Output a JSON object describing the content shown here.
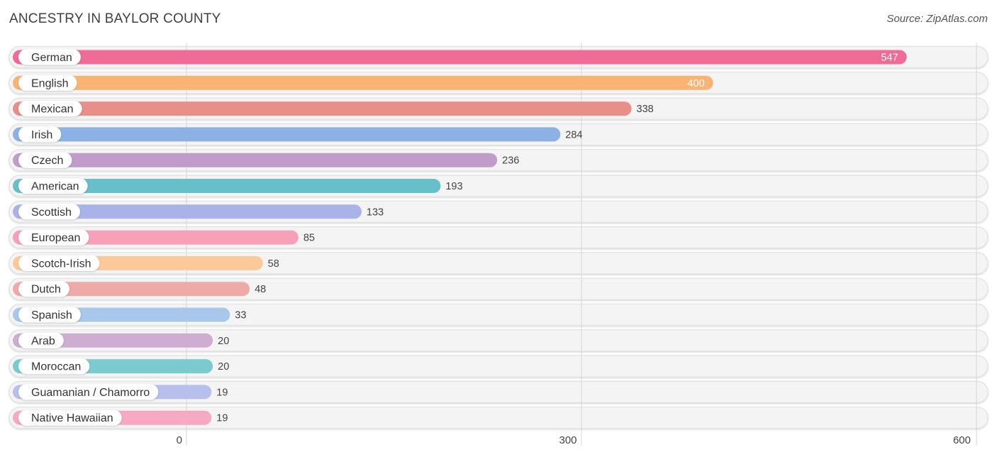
{
  "header": {
    "title": "ANCESTRY IN BAYLOR COUNTY",
    "source": "Source: ZipAtlas.com"
  },
  "chart_data": {
    "type": "bar",
    "orientation": "horizontal",
    "title": "ANCESTRY IN BAYLOR COUNTY",
    "xlabel": "",
    "ylabel": "",
    "xlim": [
      0,
      600
    ],
    "ticks": [
      0,
      300,
      600
    ],
    "tick_labels": [
      "0",
      "300",
      "600"
    ],
    "grid": true,
    "categories": [
      "German",
      "English",
      "Mexican",
      "Irish",
      "Czech",
      "American",
      "Scottish",
      "European",
      "Scotch-Irish",
      "Dutch",
      "Spanish",
      "Arab",
      "Moroccan",
      "Guamanian / Chamorro",
      "Native Hawaiian"
    ],
    "values": [
      547,
      400,
      338,
      284,
      236,
      193,
      133,
      85,
      58,
      48,
      33,
      20,
      20,
      19,
      19
    ],
    "value_labels": [
      "547",
      "400",
      "338",
      "284",
      "236",
      "193",
      "133",
      "85",
      "58",
      "48",
      "33",
      "20",
      "20",
      "19",
      "19"
    ],
    "colors": [
      "#f06b96",
      "#f9b474",
      "#e88f8a",
      "#8cb1e4",
      "#c09dc8",
      "#67bfc9",
      "#aab3e8",
      "#f7a0ba",
      "#fbc99a",
      "#efaaa8",
      "#a7c7eb",
      "#cdaed1",
      "#79cbcf",
      "#b7bfed",
      "#f7a8c2"
    ]
  }
}
